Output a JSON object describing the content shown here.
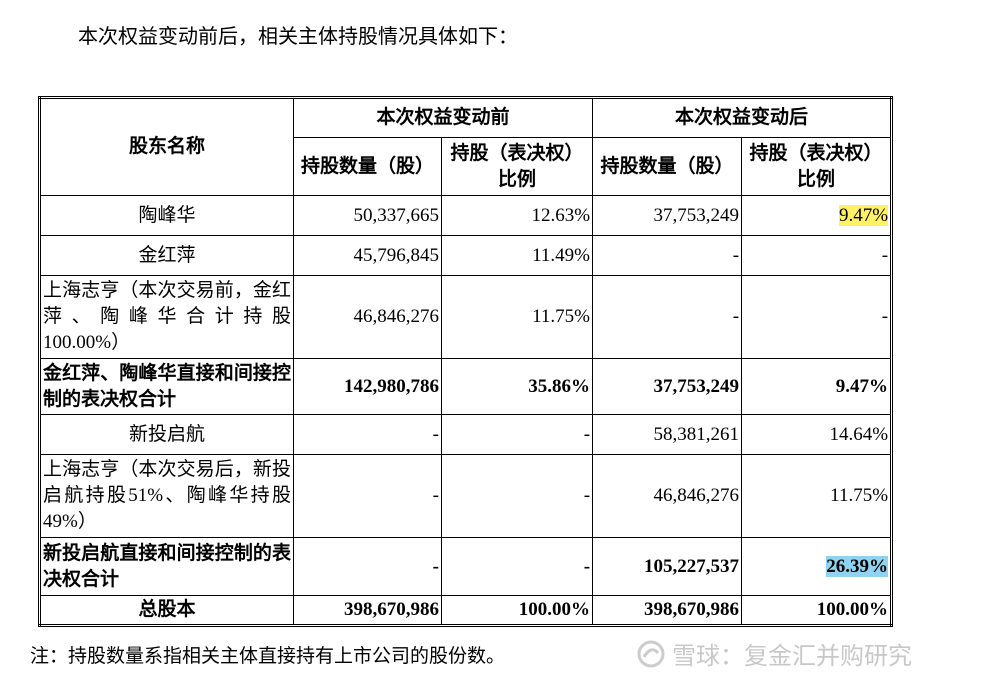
{
  "intro": "本次权益变动前后，相关主体持股情况具体如下：",
  "table": {
    "name_header": "股东名称",
    "group_headers": [
      "本次权益变动前",
      "本次权益变动后"
    ],
    "sub_headers": [
      "持股数量（股）",
      "持股（表决权）比例",
      "持股数量（股）",
      "持股（表决权）比例"
    ],
    "rows": [
      [
        "陶峰华",
        "50,337,665",
        "12.63%",
        "37,753,249",
        "9.47%"
      ],
      [
        "金红萍",
        "45,796,845",
        "11.49%",
        "-",
        "-"
      ],
      [
        "上海志亨（本次交易前，金红萍、陶峰华合计持股100.00%）",
        "46,846,276",
        "11.75%",
        "-",
        "-"
      ],
      [
        "金红萍、陶峰华直接和间接控制的表决权合计",
        "142,980,786",
        "35.86%",
        "37,753,249",
        "9.47%"
      ],
      [
        "新投启航",
        "-",
        "-",
        "58,381,261",
        "14.64%"
      ],
      [
        "上海志亨（本次交易后，新投启航持股51%、陶峰华持股49%）",
        "-",
        "-",
        "46,846,276",
        "11.75%"
      ],
      [
        "新投启航直接和间接控制的表决权合计",
        "-",
        "-",
        "105,227,537",
        "26.39%"
      ],
      [
        "总股本",
        "398,670,986",
        "100.00%",
        "398,670,986",
        "100.00%"
      ]
    ]
  },
  "note": "注：持股数量系指相关主体直接持有上市公司的股份数。",
  "watermark": "雪球：复金汇并购研究"
}
